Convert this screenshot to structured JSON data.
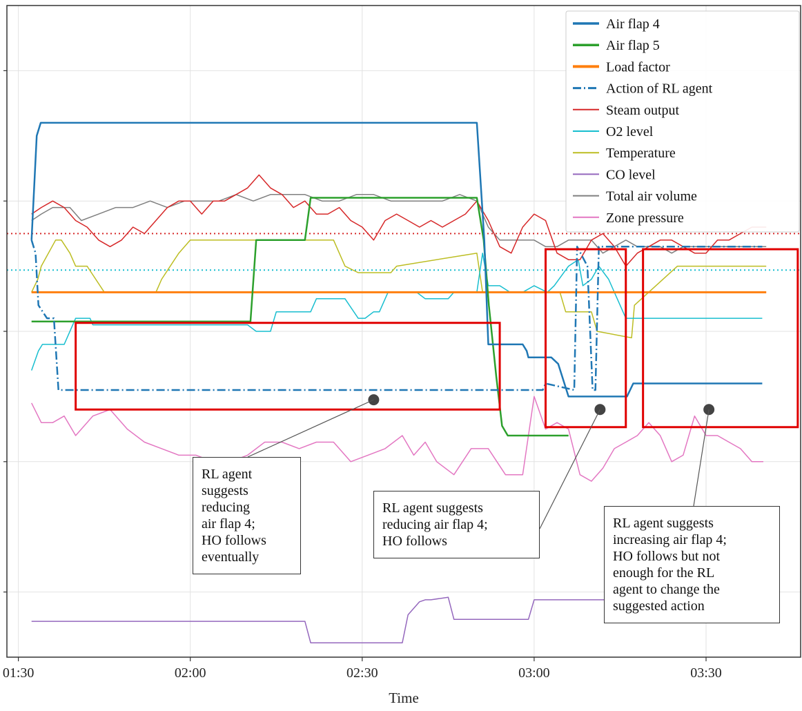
{
  "chart_data": {
    "type": "line",
    "xlabel": "Time",
    "x_ticks": [
      "01:30",
      "02:00",
      "02:30",
      "03:00",
      "03:30"
    ],
    "x_range_minutes": [
      88,
      132.5
    ],
    "y_range": [
      0,
      1
    ],
    "grid": true,
    "y_tick_labels_shown": false,
    "legend_position": "top-right",
    "series": [
      {
        "name": "Air flap 4",
        "color": "#1f77b4",
        "style": "solid",
        "width": 2.5,
        "legend_width": 3.5,
        "x": [
          92.3,
          93.2,
          93.9,
          94.3,
          170,
          171.3,
          172,
          178,
          178.7,
          179,
          182.7,
          183,
          184.2,
          186,
          196.2,
          197.3,
          219.8
        ],
        "y": [
          0.64,
          0.8,
          0.82,
          0.82,
          0.82,
          0.64,
          0.48,
          0.48,
          0.47,
          0.46,
          0.46,
          0.46,
          0.45,
          0.4,
          0.4,
          0.42,
          0.42
        ]
      },
      {
        "name": "Air flap 5",
        "color": "#2ca02c",
        "style": "solid",
        "width": 2.5,
        "legend_width": 3.5,
        "x": [
          92.3,
          130.5,
          131.5,
          140,
          141,
          146.5,
          147.3,
          149.3,
          170,
          171.2,
          172.1,
          173.4,
          174.4,
          175.4,
          186
        ],
        "y": [
          0.515,
          0.515,
          0.64,
          0.64,
          0.705,
          0.705,
          0.705,
          0.705,
          0.705,
          0.64,
          0.54,
          0.43,
          0.355,
          0.34,
          0.34
        ]
      },
      {
        "name": "Load factor",
        "color": "#ff7f0e",
        "style": "solid",
        "width": 3,
        "legend_width": 4,
        "x": [
          92.3,
          220.5
        ],
        "y": [
          0.56,
          0.56
        ]
      },
      {
        "name": "Action of RL agent",
        "color": "#1f77b4",
        "style": "dashdot",
        "width": 2.5,
        "legend_width": 3,
        "x": [
          92.3,
          93,
          93.5,
          95,
          96.2,
          97,
          119,
          181.5,
          182,
          187,
          187.5,
          189.3,
          190.2,
          190.7,
          191.3,
          219.8
        ],
        "y": [
          0.64,
          0.62,
          0.54,
          0.52,
          0.52,
          0.41,
          0.41,
          0.41,
          0.42,
          0.41,
          0.63,
          0.6,
          0.41,
          0.41,
          0.63,
          0.63
        ]
      },
      {
        "name": "Steam output",
        "color": "#d62728",
        "style": "solid",
        "width": 1.5,
        "legend_width": 2,
        "x": [
          92.3,
          94,
          96,
          98,
          100,
          102,
          104,
          106,
          108,
          110,
          112,
          114,
          116,
          118,
          120,
          122,
          124,
          126,
          128,
          130,
          132,
          134,
          136,
          138,
          140,
          142,
          144,
          146,
          148,
          150,
          152,
          154,
          156,
          158,
          160,
          162,
          164,
          166,
          168,
          170,
          172,
          174,
          176,
          178,
          180,
          182,
          184,
          186,
          188,
          190,
          192,
          194,
          196,
          198,
          200,
          202,
          204,
          206,
          208,
          210,
          212,
          214,
          216,
          218,
          220.5
        ],
        "y": [
          0.68,
          0.69,
          0.7,
          0.69,
          0.67,
          0.66,
          0.64,
          0.63,
          0.64,
          0.66,
          0.65,
          0.67,
          0.69,
          0.7,
          0.7,
          0.68,
          0.7,
          0.7,
          0.71,
          0.72,
          0.74,
          0.72,
          0.71,
          0.69,
          0.7,
          0.68,
          0.68,
          0.69,
          0.67,
          0.66,
          0.64,
          0.67,
          0.68,
          0.67,
          0.66,
          0.67,
          0.66,
          0.67,
          0.68,
          0.7,
          0.67,
          0.63,
          0.62,
          0.66,
          0.68,
          0.67,
          0.62,
          0.61,
          0.61,
          0.64,
          0.65,
          0.63,
          0.6,
          0.62,
          0.63,
          0.64,
          0.64,
          0.63,
          0.62,
          0.62,
          0.64,
          0.64,
          0.65,
          0.66,
          0.66
        ]
      },
      {
        "name": "O2 level",
        "color": "#17becf",
        "style": "solid",
        "width": 1.5,
        "legend_width": 2,
        "x": [
          92.3,
          93.5,
          94.2,
          98,
          100,
          102.5,
          103,
          113,
          114,
          130,
          131.5,
          134,
          135,
          141,
          142,
          147,
          149.3,
          150.5,
          152,
          153,
          154.5,
          155.6,
          157,
          159.5,
          161,
          165,
          166,
          170,
          171,
          172,
          174,
          175.8,
          178,
          180,
          182.3,
          183.5,
          186,
          187.7,
          188.5,
          190,
          191.3,
          193,
          196,
          198.5,
          199.5,
          202,
          207,
          208,
          219.8
        ],
        "y": [
          0.44,
          0.47,
          0.48,
          0.48,
          0.52,
          0.52,
          0.51,
          0.51,
          0.51,
          0.51,
          0.5,
          0.5,
          0.53,
          0.53,
          0.55,
          0.55,
          0.52,
          0.52,
          0.53,
          0.53,
          0.56,
          0.56,
          0.56,
          0.56,
          0.55,
          0.55,
          0.56,
          0.56,
          0.62,
          0.57,
          0.57,
          0.56,
          0.56,
          0.57,
          0.56,
          0.57,
          0.6,
          0.61,
          0.57,
          0.58,
          0.6,
          0.58,
          0.52,
          0.52,
          0.52,
          0.52,
          0.52,
          0.52,
          0.52
        ]
      },
      {
        "name": "Temperature",
        "color": "#bcbd22",
        "style": "solid",
        "width": 1.5,
        "legend_width": 2,
        "x": [
          92.3,
          93.4,
          94,
          96.5,
          97.5,
          99,
          100,
          102,
          105,
          114,
          115,
          118,
          120,
          145,
          147,
          149.3,
          150,
          155,
          156,
          170,
          171,
          184.5,
          185.5,
          190,
          191,
          197,
          197.5,
          205,
          206,
          208,
          211,
          219,
          220.5
        ],
        "y": [
          0.56,
          0.58,
          0.6,
          0.64,
          0.64,
          0.62,
          0.6,
          0.6,
          0.56,
          0.56,
          0.58,
          0.62,
          0.64,
          0.64,
          0.6,
          0.59,
          0.59,
          0.59,
          0.6,
          0.62,
          0.56,
          0.56,
          0.53,
          0.53,
          0.5,
          0.49,
          0.54,
          0.6,
          0.6,
          0.6,
          0.6,
          0.6,
          0.6
        ]
      },
      {
        "name": "CO level",
        "color": "#9467bd",
        "style": "solid",
        "width": 1.5,
        "legend_width": 2,
        "x": [
          92.3,
          140,
          141,
          157,
          158,
          160,
          161,
          162,
          165,
          166,
          179,
          180,
          196,
          197,
          219.8
        ],
        "y": [
          0.055,
          0.055,
          0.022,
          0.022,
          0.065,
          0.085,
          0.088,
          0.088,
          0.092,
          0.058,
          0.058,
          0.088,
          0.088,
          0.09,
          0.09
        ]
      },
      {
        "name": "Total air volume",
        "color": "#7f7f7f",
        "style": "solid",
        "width": 1.5,
        "legend_width": 2,
        "x": [
          92.3,
          94,
          96,
          99,
          101,
          104,
          107,
          110,
          113,
          116,
          119,
          122,
          125,
          128,
          131,
          134,
          137,
          140,
          143,
          146,
          149,
          152,
          155,
          158,
          161,
          164,
          167,
          170,
          172,
          174,
          176,
          178,
          180,
          182,
          184,
          186,
          188,
          190,
          192,
          194,
          196,
          198,
          200,
          202,
          204,
          206,
          208,
          210,
          212,
          214,
          216,
          218,
          220.5
        ],
        "y": [
          0.67,
          0.68,
          0.69,
          0.69,
          0.67,
          0.68,
          0.69,
          0.69,
          0.7,
          0.69,
          0.7,
          0.7,
          0.7,
          0.71,
          0.7,
          0.71,
          0.71,
          0.71,
          0.7,
          0.7,
          0.71,
          0.71,
          0.7,
          0.7,
          0.7,
          0.7,
          0.71,
          0.7,
          0.66,
          0.64,
          0.64,
          0.64,
          0.64,
          0.63,
          0.63,
          0.64,
          0.64,
          0.64,
          0.62,
          0.63,
          0.64,
          0.63,
          0.63,
          0.63,
          0.62,
          0.63,
          0.63,
          0.63,
          0.63,
          0.63,
          0.63,
          0.63,
          0.63
        ]
      },
      {
        "name": "Zone pressure",
        "color": "#e377c2",
        "style": "solid",
        "width": 1.5,
        "legend_width": 2,
        "x": [
          92.3,
          94,
          96,
          98,
          100,
          103,
          106,
          109,
          112,
          115,
          118,
          121,
          124,
          127,
          130,
          133,
          136,
          139,
          142,
          145,
          148,
          151,
          154,
          157,
          159,
          161,
          163,
          166,
          169,
          172,
          175,
          178,
          180,
          182,
          184,
          186,
          188,
          190,
          192,
          194,
          196,
          198,
          200,
          202,
          204,
          206,
          208,
          210,
          212,
          214,
          216,
          218,
          220
        ],
        "y": [
          0.39,
          0.36,
          0.36,
          0.37,
          0.34,
          0.37,
          0.38,
          0.35,
          0.33,
          0.32,
          0.31,
          0.31,
          0.3,
          0.3,
          0.31,
          0.33,
          0.33,
          0.32,
          0.33,
          0.33,
          0.3,
          0.31,
          0.32,
          0.34,
          0.31,
          0.33,
          0.3,
          0.28,
          0.32,
          0.32,
          0.28,
          0.28,
          0.4,
          0.35,
          0.36,
          0.35,
          0.28,
          0.27,
          0.29,
          0.32,
          0.33,
          0.34,
          0.36,
          0.34,
          0.3,
          0.31,
          0.37,
          0.34,
          0.34,
          0.33,
          0.32,
          0.3,
          0.3
        ]
      }
    ],
    "reference_lines": [
      {
        "y": 0.65,
        "color": "#d62728",
        "style": "dotted"
      },
      {
        "y": 0.594,
        "color": "#17becf",
        "style": "dotted"
      }
    ],
    "highlight_boxes": [
      {
        "x0": 100,
        "x1": 174,
        "y0": 0.38,
        "y1": 0.513,
        "marker_x": 152,
        "marker_y": 0.395,
        "callout": "left"
      },
      {
        "x0": 182,
        "x1": 196,
        "y0": 0.353,
        "y1": 0.626,
        "marker_x": 191.5,
        "marker_y": 0.38,
        "callout": "mid"
      },
      {
        "x0": 199,
        "x1": 226,
        "y0": 0.353,
        "y1": 0.626,
        "marker_x": 210.5,
        "marker_y": 0.38,
        "callout": "right"
      }
    ],
    "annotations": [
      {
        "id": "left",
        "lines": [
          "RL agent",
          "suggests",
          "reducing",
          "air flap 4;",
          "HO follows",
          "eventually"
        ]
      },
      {
        "id": "mid",
        "lines": [
          "RL agent suggests",
          "reducing air flap 4;",
          "HO follows"
        ]
      },
      {
        "id": "right",
        "lines": [
          "RL agent suggests",
          "increasing air flap 4;",
          "HO follows but not",
          "enough for the RL",
          "agent to change the",
          "suggested action"
        ]
      }
    ]
  }
}
